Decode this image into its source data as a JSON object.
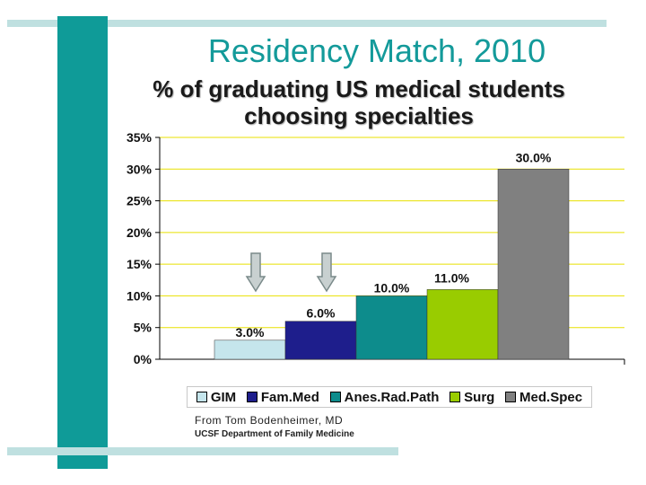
{
  "title": "Residency Match, 2010",
  "subtitle": "% of graduating US medical students choosing specialties",
  "chart_data": {
    "type": "bar",
    "categories": [
      "GIM",
      "Fam.Med",
      "Anes.Rad.Path",
      "Surg",
      "Med.Spec"
    ],
    "values": [
      3.0,
      6.0,
      10.0,
      11.0,
      30.0
    ],
    "data_labels": [
      "3.0%",
      "6.0%",
      "10.0%",
      "11.0%",
      "30.0%"
    ],
    "colors": [
      "#c5e5ec",
      "#1e1e8c",
      "#0d8c8c",
      "#99cc00",
      "#808080"
    ],
    "ylim": [
      0,
      35
    ],
    "yticks": [
      "0%",
      "5%",
      "10%",
      "15%",
      "20%",
      "25%",
      "30%",
      "35%"
    ],
    "grid": true,
    "grid_color": "#e8e000",
    "legend": "bottom",
    "annotations": [
      "down-arrow-icon over GIM",
      "down-arrow-icon over Fam.Med"
    ]
  },
  "credits": {
    "line1": "From Tom Bodenheimer, MD",
    "line2": "UCSF Department of Family Medicine"
  }
}
